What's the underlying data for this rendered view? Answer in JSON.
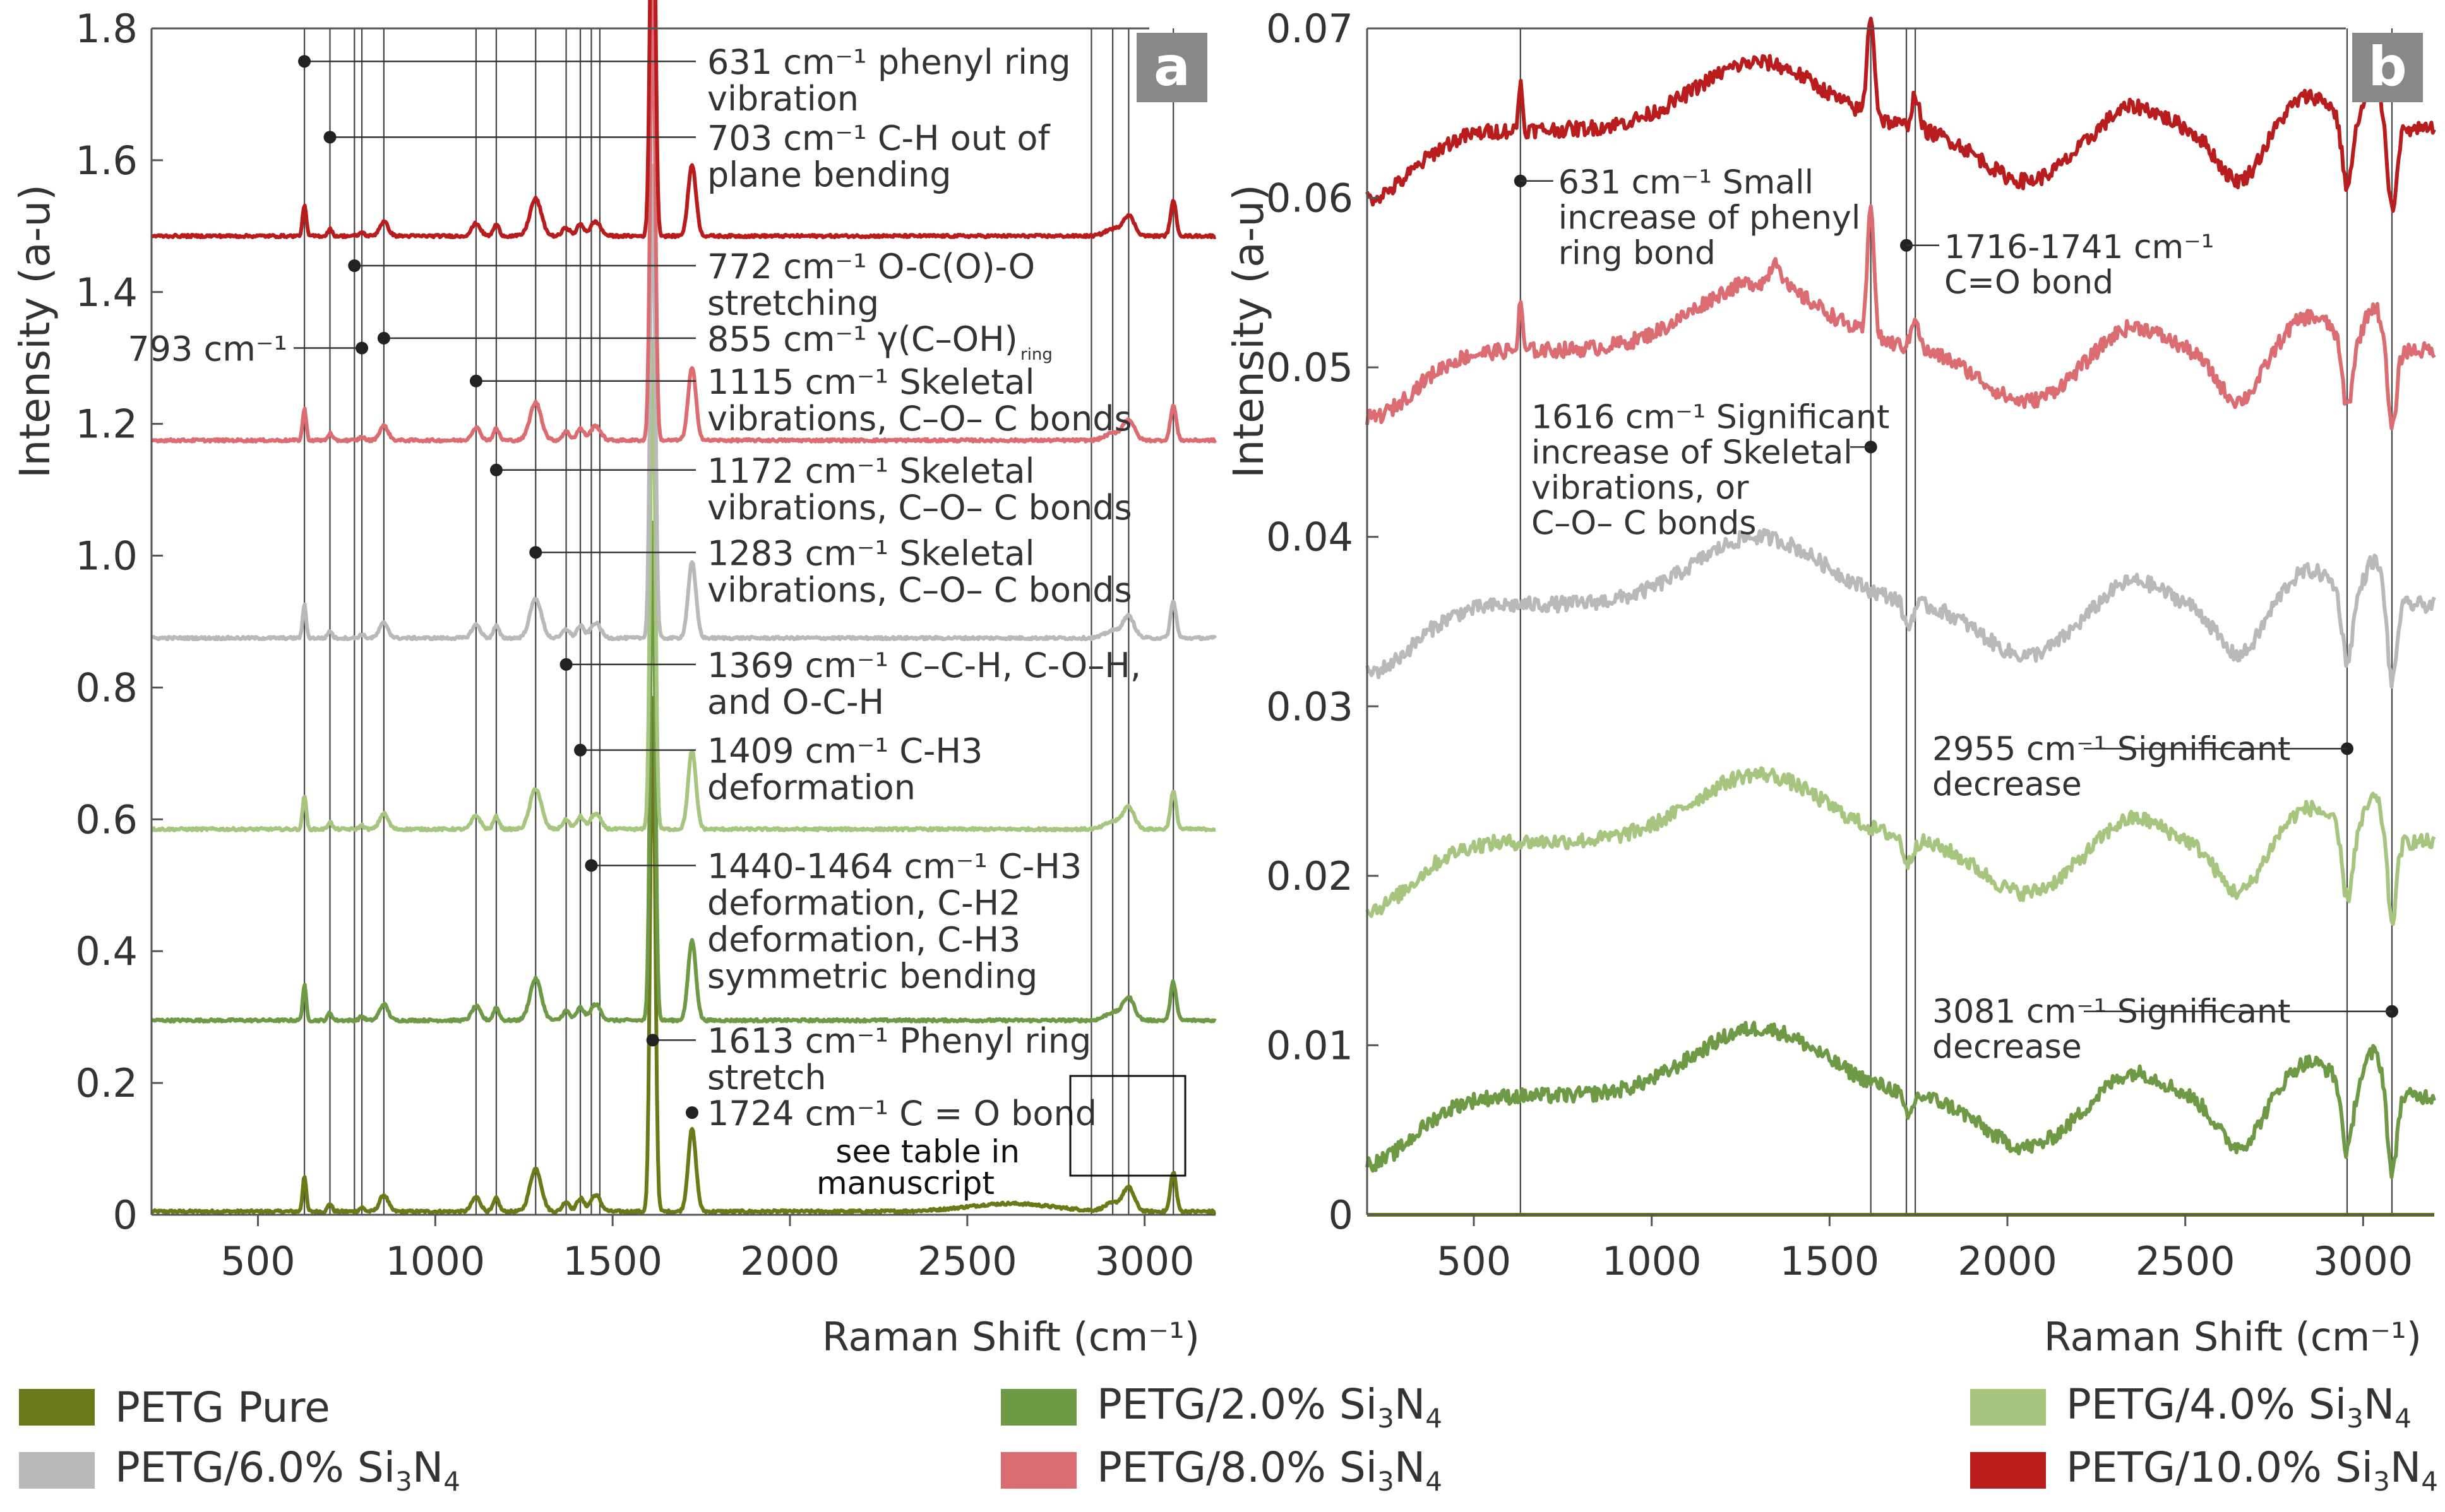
{
  "colors": {
    "pure": "#6b7a19",
    "p2": "#6f9a45",
    "p4": "#a6c57f",
    "p6": "#b9b9b9",
    "p8": "#db6c72",
    "p10": "#b91c1c",
    "axis": "#555555",
    "text": "#333333",
    "badge": "#888888"
  },
  "legend": [
    {
      "label_prefix": "PETG Pure",
      "color_key": "pure"
    },
    {
      "label_prefix": "PETG/2.0% Si",
      "sub1": "3",
      "mid": "N",
      "sub2": "4",
      "color_key": "p2"
    },
    {
      "label_prefix": "PETG/4.0% Si",
      "sub1": "3",
      "mid": "N",
      "sub2": "4",
      "color_key": "p4"
    },
    {
      "label_prefix": "PETG/6.0% Si",
      "sub1": "3",
      "mid": "N",
      "sub2": "4",
      "color_key": "p6"
    },
    {
      "label_prefix": "PETG/8.0% Si",
      "sub1": "3",
      "mid": "N",
      "sub2": "4",
      "color_key": "p8"
    },
    {
      "label_prefix": "PETG/10.0% Si",
      "sub1": "3",
      "mid": "N",
      "sub2": "4",
      "color_key": "p10"
    }
  ],
  "chart_data": [
    {
      "type": "line",
      "panel": "a",
      "title": "",
      "ylabel": "Intensity (a-u)",
      "xlabel": "Raman Shift (cm⁻¹)",
      "xlim": [
        200,
        3200
      ],
      "ylim": [
        0,
        1.8
      ],
      "xticks": [
        500,
        1000,
        1500,
        2000,
        2500,
        3000
      ],
      "yticks": [
        0,
        0.2,
        0.4,
        0.6,
        0.8,
        1.0,
        1.2,
        1.4,
        1.6,
        1.8
      ],
      "ytick_labels": [
        "0",
        "0.2",
        "0.4",
        "0.6",
        "0.8",
        "1.0",
        "1.2",
        "1.4",
        "1.6",
        "1.8"
      ],
      "series": [
        {
          "name": "PETG Pure",
          "color_key": "pure",
          "baseline": 0.005,
          "scale": 1.0
        },
        {
          "name": "PETG/2.0% Si3N4",
          "color_key": "p2",
          "baseline": 0.295,
          "scale": 0.97
        },
        {
          "name": "PETG/4.0% Si3N4",
          "color_key": "p4",
          "baseline": 0.585,
          "scale": 0.95
        },
        {
          "name": "PETG/6.0% Si3N4",
          "color_key": "p6",
          "baseline": 0.875,
          "scale": 0.92
        },
        {
          "name": "PETG/8.0% Si3N4",
          "color_key": "p8",
          "baseline": 1.175,
          "scale": 0.88
        },
        {
          "name": "PETG/10.0% Si3N4",
          "color_key": "p10",
          "baseline": 1.485,
          "scale": 0.87
        }
      ],
      "peaks": [
        {
          "x": 631,
          "h": 0.055,
          "w": 5
        },
        {
          "x": 703,
          "h": 0.012,
          "w": 6
        },
        {
          "x": 793,
          "h": 0.006,
          "w": 7
        },
        {
          "x": 855,
          "h": 0.025,
          "w": 12
        },
        {
          "x": 1115,
          "h": 0.022,
          "w": 12
        },
        {
          "x": 1172,
          "h": 0.02,
          "w": 8
        },
        {
          "x": 1283,
          "h": 0.065,
          "w": 16
        },
        {
          "x": 1369,
          "h": 0.015,
          "w": 10
        },
        {
          "x": 1409,
          "h": 0.02,
          "w": 10
        },
        {
          "x": 1452,
          "h": 0.025,
          "w": 14
        },
        {
          "x": 1613,
          "h": 0.78,
          "w": 7
        },
        {
          "x": 1724,
          "h": 0.125,
          "w": 11
        },
        {
          "x": 2910,
          "h": 0.012,
          "w": 22
        },
        {
          "x": 2955,
          "h": 0.035,
          "w": 16
        },
        {
          "x": 3081,
          "h": 0.06,
          "w": 8
        }
      ],
      "ref_lines": [
        631,
        703,
        772,
        793,
        855,
        1115,
        1172,
        1283,
        1369,
        1409,
        1440,
        1464,
        2850,
        2910,
        2955,
        3081
      ],
      "annotations": [
        {
          "x": 631,
          "y": 1.75,
          "lines": [
            "631 cm⁻¹ phenyl ring",
            "vibration"
          ]
        },
        {
          "x": 703,
          "y": 1.635,
          "lines": [
            "703 cm⁻¹ C-H out of",
            "plane bending"
          ]
        },
        {
          "x": 772,
          "y": 1.44,
          "lines": [
            "772 cm⁻¹ O-C(O)-O",
            "stretching"
          ]
        },
        {
          "x": 855,
          "y": 1.33,
          "lines": [
            "855 cm⁻¹ γ(C–OH)"
          ],
          "sub": "ring"
        },
        {
          "x": 1115,
          "y": 1.265,
          "lines": [
            "1115 cm⁻¹ Skeletal",
            "vibrations, C–O– C bonds"
          ]
        },
        {
          "x": 1172,
          "y": 1.13,
          "lines": [
            "1172 cm⁻¹ Skeletal",
            "vibrations, C–O– C bonds"
          ]
        },
        {
          "x": 1283,
          "y": 1.005,
          "lines": [
            "1283 cm⁻¹ Skeletal",
            "vibrations, C–O– C bonds"
          ]
        },
        {
          "x": 1369,
          "y": 0.835,
          "lines": [
            "1369 cm⁻¹ C–C-H, C-O–H,",
            "and O-C-H"
          ]
        },
        {
          "x": 1409,
          "y": 0.705,
          "lines": [
            "1409 cm⁻¹ C-H3",
            "deformation"
          ]
        },
        {
          "x": 1440,
          "y": 0.53,
          "lines": [
            "1440-1464 cm⁻¹ C-H3",
            "deformation, C-H2",
            "deformation, C-H3",
            "symmetric bending"
          ]
        },
        {
          "x": 1613,
          "y": 0.265,
          "lines": [
            "1613 cm⁻¹ Phenyl ring",
            "stretch"
          ]
        },
        {
          "x": 1724,
          "y": 0.155,
          "lines": [
            "1724 cm⁻¹ C = O bond"
          ]
        }
      ],
      "label_793": "793 cm⁻¹",
      "table_note": [
        "see table in",
        "manuscript"
      ],
      "badge": "a"
    },
    {
      "type": "line",
      "panel": "b",
      "title": "",
      "ylabel": "Intensity (a-u)",
      "xlabel": "Raman Shift (cm⁻¹)",
      "xlim": [
        200,
        3200
      ],
      "ylim": [
        0,
        0.07
      ],
      "xticks": [
        500,
        1000,
        1500,
        2000,
        2500,
        3000
      ],
      "yticks": [
        0,
        0.01,
        0.02,
        0.03,
        0.04,
        0.05,
        0.06,
        0.07
      ],
      "ytick_labels": [
        "0",
        "0.01",
        "0.02",
        "0.03",
        "0.04",
        "0.05",
        "0.06",
        "0.07"
      ],
      "series": [
        {
          "name": "PETG Pure",
          "color_key": "pure",
          "values_note": "flat at 0"
        },
        {
          "name": "PETG/2.0% Si3N4",
          "color_key": "p2",
          "baseline": 0.007
        },
        {
          "name": "PETG/4.0% Si3N4",
          "color_key": "p4",
          "baseline": 0.022
        },
        {
          "name": "PETG/6.0% Si3N4",
          "color_key": "p6",
          "baseline": 0.036
        },
        {
          "name": "PETG/8.0% Si3N4",
          "color_key": "p8",
          "baseline": 0.051
        },
        {
          "name": "PETG/10.0% Si3N4",
          "color_key": "p10",
          "baseline": 0.064
        }
      ],
      "ref_lines": [
        631,
        1616,
        1716,
        1741,
        2955,
        3081
      ],
      "annotations": [
        {
          "x": 631,
          "y": 0.061,
          "side": "right",
          "lines": [
            "631 cm⁻¹ Small",
            "increase of phenyl",
            "ring bond"
          ]
        },
        {
          "x": 1716,
          "y": 0.0572,
          "side": "right",
          "lines": [
            "1716-1741 cm⁻¹",
            "C=O bond"
          ]
        },
        {
          "x": 1616,
          "y": 0.0453,
          "side": "left",
          "lines": [
            "1616 cm⁻¹ Significant",
            "increase of Skeletal",
            "vibrations, or",
            "C–O– C bonds"
          ]
        },
        {
          "x": 2955,
          "y": 0.0275,
          "side": "left",
          "lines": [
            "2955 cm⁻¹ Significant",
            "decrease"
          ]
        },
        {
          "x": 3081,
          "y": 0.012,
          "side": "left",
          "lines": [
            "3081 cm⁻¹ Significant",
            "decrease"
          ]
        }
      ],
      "badge": "b"
    }
  ]
}
